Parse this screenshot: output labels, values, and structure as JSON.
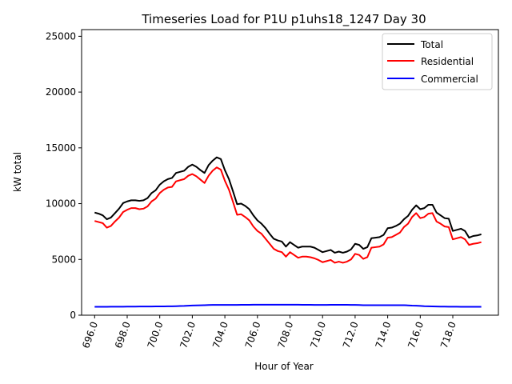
{
  "chart_data": {
    "type": "line",
    "title": "Timeseries Load for P1U p1uhs18_1247  Day 30",
    "xlabel": "Hour of Year",
    "ylabel": "kW total",
    "xlim": [
      695.2,
      720.8
    ],
    "ylim": [
      0,
      25600
    ],
    "xticks": [
      "696.0",
      "698.0",
      "700.0",
      "702.0",
      "704.0",
      "706.0",
      "708.0",
      "710.0",
      "712.0",
      "714.0",
      "716.0",
      "718.0"
    ],
    "xtick_values": [
      696,
      698,
      700,
      702,
      704,
      706,
      708,
      710,
      712,
      714,
      716,
      718
    ],
    "yticks": [
      "0",
      "5000",
      "10000",
      "15000",
      "20000",
      "25000"
    ],
    "ytick_values": [
      0,
      5000,
      10000,
      15000,
      20000,
      25000
    ],
    "legend_position": "top-right",
    "x": [
      696.0,
      696.25,
      696.5,
      696.75,
      697.0,
      697.25,
      697.5,
      697.75,
      698.0,
      698.25,
      698.5,
      698.75,
      699.0,
      699.25,
      699.5,
      699.75,
      700.0,
      700.25,
      700.5,
      700.75,
      701.0,
      701.25,
      701.5,
      701.75,
      702.0,
      702.25,
      702.5,
      702.75,
      703.0,
      703.25,
      703.5,
      703.75,
      704.0,
      704.25,
      704.5,
      704.75,
      705.0,
      705.25,
      705.5,
      705.75,
      706.0,
      706.25,
      706.5,
      706.75,
      707.0,
      707.25,
      707.5,
      707.75,
      708.0,
      708.25,
      708.5,
      708.75,
      709.0,
      709.25,
      709.5,
      709.75,
      710.0,
      710.25,
      710.5,
      710.75,
      711.0,
      711.25,
      711.5,
      711.75,
      712.0,
      712.25,
      712.5,
      712.75,
      713.0,
      713.25,
      713.5,
      713.75,
      714.0,
      714.25,
      714.5,
      714.75,
      715.0,
      715.25,
      715.5,
      715.75,
      716.0,
      716.25,
      716.5,
      716.75,
      717.0,
      717.25,
      717.5,
      717.75,
      718.0,
      718.25,
      718.5,
      718.75,
      719.0,
      719.25,
      719.5,
      719.75
    ],
    "series": [
      {
        "name": "Total",
        "color": "#000000",
        "values": [
          9200,
          9100,
          8950,
          8600,
          8750,
          9150,
          9550,
          10050,
          10200,
          10300,
          10300,
          10250,
          10300,
          10500,
          10950,
          11200,
          11700,
          12000,
          12200,
          12300,
          12750,
          12850,
          12950,
          13300,
          13500,
          13300,
          13000,
          12750,
          13450,
          13850,
          14150,
          14000,
          13000,
          12200,
          11100,
          9950,
          10000,
          9800,
          9500,
          8950,
          8500,
          8200,
          7800,
          7300,
          6850,
          6700,
          6600,
          6150,
          6550,
          6300,
          6050,
          6150,
          6150,
          6150,
          6050,
          5850,
          5650,
          5750,
          5850,
          5600,
          5700,
          5600,
          5700,
          5900,
          6400,
          6300,
          5950,
          6100,
          6900,
          6950,
          7000,
          7200,
          7800,
          7850,
          8000,
          8200,
          8600,
          8900,
          9450,
          9850,
          9500,
          9600,
          9900,
          9900,
          9200,
          8950,
          8700,
          8650,
          7550,
          7650,
          7750,
          7550,
          6950,
          7100,
          7150,
          7250
        ]
      },
      {
        "name": "Residential",
        "color": "#ff0000",
        "values": [
          8450,
          8350,
          8250,
          7850,
          8000,
          8400,
          8750,
          9250,
          9450,
          9600,
          9600,
          9500,
          9550,
          9750,
          10200,
          10450,
          10950,
          11250,
          11450,
          11500,
          12000,
          12100,
          12200,
          12500,
          12650,
          12450,
          12150,
          11850,
          12500,
          12950,
          13250,
          13050,
          12050,
          11250,
          10150,
          9000,
          9050,
          8800,
          8500,
          7950,
          7550,
          7300,
          6850,
          6400,
          5950,
          5750,
          5650,
          5250,
          5650,
          5400,
          5150,
          5250,
          5250,
          5200,
          5100,
          4950,
          4750,
          4850,
          4950,
          4700,
          4800,
          4700,
          4800,
          5000,
          5500,
          5400,
          5050,
          5200,
          6050,
          6100,
          6150,
          6350,
          6950,
          7000,
          7200,
          7400,
          7900,
          8200,
          8800,
          9150,
          8700,
          8800,
          9100,
          9150,
          8400,
          8200,
          7950,
          7900,
          6800,
          6900,
          7000,
          6800,
          6300,
          6400,
          6450,
          6550
        ]
      },
      {
        "name": "Commercial",
        "color": "#0000ff",
        "values": [
          750,
          750,
          750,
          750,
          760,
          760,
          760,
          760,
          770,
          770,
          770,
          780,
          780,
          780,
          780,
          790,
          790,
          790,
          800,
          800,
          810,
          820,
          830,
          850,
          870,
          880,
          890,
          900,
          910,
          920,
          920,
          920,
          920,
          920,
          920,
          920,
          930,
          930,
          930,
          940,
          940,
          940,
          940,
          940,
          940,
          940,
          940,
          940,
          940,
          940,
          940,
          930,
          930,
          930,
          920,
          920,
          920,
          920,
          930,
          930,
          930,
          930,
          930,
          920,
          920,
          910,
          900,
          900,
          900,
          900,
          900,
          900,
          900,
          900,
          900,
          900,
          900,
          880,
          860,
          850,
          830,
          810,
          800,
          790,
          780,
          770,
          770,
          760,
          760,
          760,
          750,
          750,
          750,
          750,
          750,
          750
        ]
      }
    ]
  }
}
